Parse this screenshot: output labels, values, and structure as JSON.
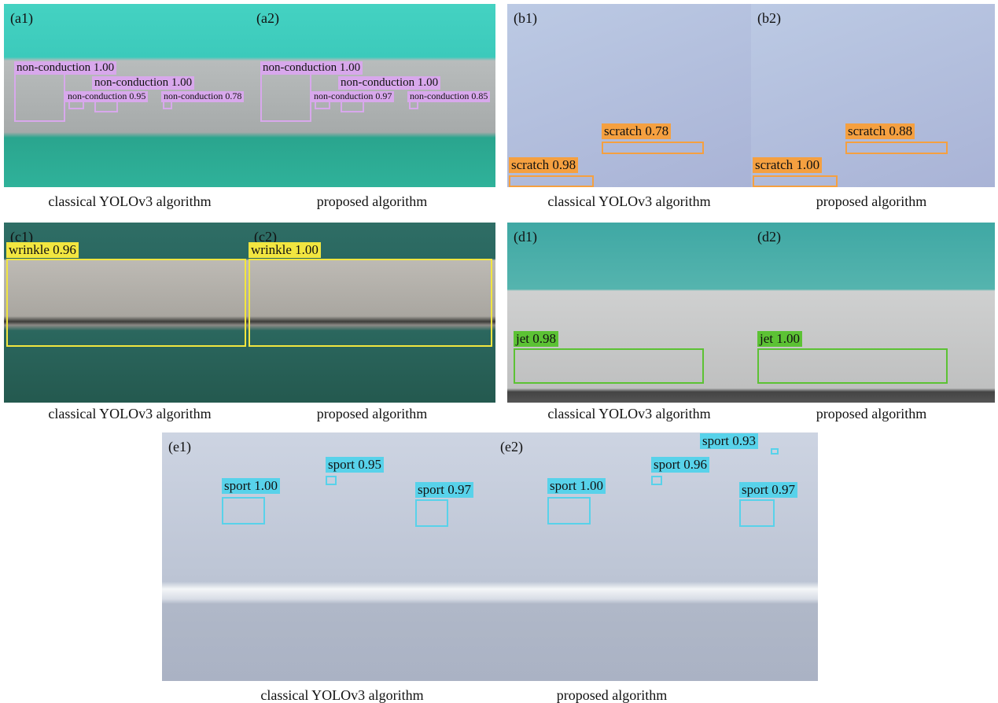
{
  "panels": [
    {
      "label": "(a1)",
      "detections": [
        "non-conduction 1.00",
        "non-conduction 1.00",
        "non-conduction 0.95",
        "non-conduction 0.78"
      ]
    },
    {
      "label": "(a2)",
      "detections": [
        "non-conduction 1.00",
        "non-conduction 1.00",
        "non-conduction 0.97",
        "non-conduction 0.85"
      ]
    },
    {
      "label": "(b1)",
      "detections": [
        "scratch 0.78",
        "scratch 0.98"
      ]
    },
    {
      "label": "(b2)",
      "detections": [
        "scratch 0.88",
        "scratch 1.00"
      ]
    },
    {
      "label": "(c1)",
      "detections": [
        "wrinkle 0.96"
      ]
    },
    {
      "label": "(c2)",
      "detections": [
        "wrinkle 1.00"
      ]
    },
    {
      "label": "(d1)",
      "detections": [
        "jet 0.98"
      ]
    },
    {
      "label": "(d2)",
      "detections": [
        "jet 1.00"
      ]
    },
    {
      "label": "(e1)",
      "detections": [
        "sport 1.00",
        "sport 0.95",
        "sport 0.97"
      ]
    },
    {
      "label": "(e2)",
      "detections": [
        "sport 1.00",
        "sport 0.96",
        "sport 0.97",
        "sport 0.93"
      ]
    }
  ],
  "captions": [
    "classical YOLOv3 algorithm",
    "proposed algorithm",
    "classical YOLOv3 algorithm",
    "proposed algorithm",
    "classical YOLOv3 algorithm",
    "proposed algorithm",
    "classical YOLOv3 algorithm",
    "proposed algorithm",
    "classical YOLOv3 algorithm",
    "proposed algorithm"
  ]
}
